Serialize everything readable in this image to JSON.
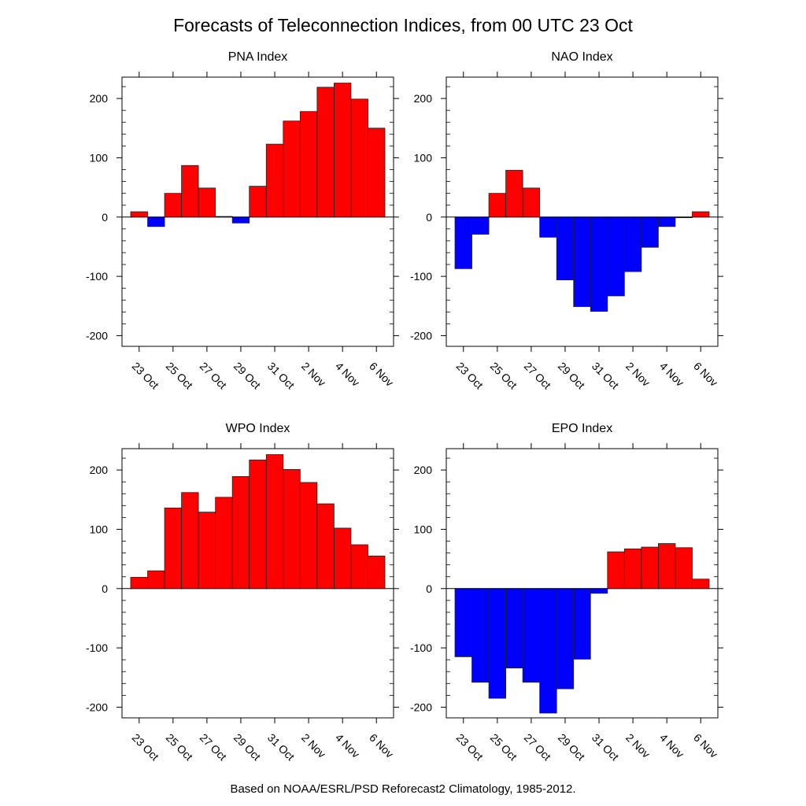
{
  "title": "Forecasts of Teleconnection Indices, from 00 UTC 23 Oct",
  "footer": "Based on NOAA/ESRL/PSD Reforecast2 Climatology, 1985-2012.",
  "colors": {
    "positive": "#ff0000",
    "negative": "#0000ff"
  },
  "chart_data": [
    {
      "type": "bar",
      "title": "PNA Index",
      "xlabel": "",
      "ylabel": "",
      "categories": [
        "23 Oct",
        "24 Oct",
        "25 Oct",
        "26 Oct",
        "27 Oct",
        "28 Oct",
        "29 Oct",
        "30 Oct",
        "31 Oct",
        "1 Nov",
        "2 Nov",
        "3 Nov",
        "4 Nov",
        "5 Nov",
        "6 Nov"
      ],
      "xtick_labels": [
        "23 Oct",
        "25 Oct",
        "27 Oct",
        "29 Oct",
        "31 Oct",
        "2 Nov",
        "4 Nov",
        "6 Nov"
      ],
      "yticks": [
        200,
        100,
        0,
        -100,
        -200
      ],
      "ylim": [
        -218,
        236
      ],
      "values": [
        9,
        -16,
        40,
        87,
        49,
        1,
        -10,
        52,
        123,
        162,
        178,
        219,
        226,
        199,
        150
      ]
    },
    {
      "type": "bar",
      "title": "NAO Index",
      "xlabel": "",
      "ylabel": "",
      "categories": [
        "23 Oct",
        "24 Oct",
        "25 Oct",
        "26 Oct",
        "27 Oct",
        "28 Oct",
        "29 Oct",
        "30 Oct",
        "31 Oct",
        "1 Nov",
        "2 Nov",
        "3 Nov",
        "4 Nov",
        "5 Nov",
        "6 Nov"
      ],
      "xtick_labels": [
        "23 Oct",
        "25 Oct",
        "27 Oct",
        "29 Oct",
        "31 Oct",
        "2 Nov",
        "4 Nov",
        "6 Nov"
      ],
      "yticks": [
        200,
        100,
        0,
        -100,
        -200
      ],
      "ylim": [
        -218,
        236
      ],
      "values": [
        -87,
        -29,
        40,
        79,
        49,
        -34,
        -106,
        -151,
        -159,
        -133,
        -92,
        -51,
        -16,
        0,
        9
      ]
    },
    {
      "type": "bar",
      "title": "WPO Index",
      "xlabel": "",
      "ylabel": "",
      "categories": [
        "23 Oct",
        "24 Oct",
        "25 Oct",
        "26 Oct",
        "27 Oct",
        "28 Oct",
        "29 Oct",
        "30 Oct",
        "31 Oct",
        "1 Nov",
        "2 Nov",
        "3 Nov",
        "4 Nov",
        "5 Nov",
        "6 Nov"
      ],
      "xtick_labels": [
        "23 Oct",
        "25 Oct",
        "27 Oct",
        "29 Oct",
        "31 Oct",
        "2 Nov",
        "4 Nov",
        "6 Nov"
      ],
      "yticks": [
        200,
        100,
        0,
        -100,
        -200
      ],
      "ylim": [
        -218,
        236
      ],
      "values": [
        19,
        30,
        136,
        162,
        129,
        154,
        189,
        217,
        226,
        201,
        179,
        143,
        102,
        74,
        55
      ]
    },
    {
      "type": "bar",
      "title": "EPO Index",
      "xlabel": "",
      "ylabel": "",
      "categories": [
        "23 Oct",
        "24 Oct",
        "25 Oct",
        "26 Oct",
        "27 Oct",
        "28 Oct",
        "29 Oct",
        "30 Oct",
        "31 Oct",
        "1 Nov",
        "2 Nov",
        "3 Nov",
        "4 Nov",
        "5 Nov",
        "6 Nov"
      ],
      "xtick_labels": [
        "23 Oct",
        "25 Oct",
        "27 Oct",
        "29 Oct",
        "31 Oct",
        "2 Nov",
        "4 Nov",
        "6 Nov"
      ],
      "yticks": [
        200,
        100,
        0,
        -100,
        -200
      ],
      "ylim": [
        -218,
        236
      ],
      "values": [
        -115,
        -158,
        -185,
        -134,
        -158,
        -210,
        -169,
        -119,
        -8,
        62,
        67,
        70,
        76,
        69,
        16
      ]
    }
  ]
}
